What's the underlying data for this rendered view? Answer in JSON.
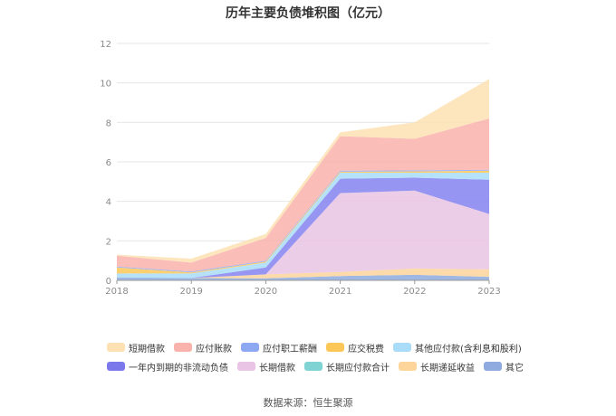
{
  "chart_data": {
    "type": "area",
    "stacked": true,
    "title": "历年主要负债堆积图（亿元）",
    "xlabel": "",
    "ylabel": "",
    "categories": [
      "2018",
      "2019",
      "2020",
      "2021",
      "2022",
      "2023"
    ],
    "ylim": [
      0,
      12
    ],
    "yticks": [
      0,
      2,
      4,
      6,
      8,
      10,
      12
    ],
    "grid": true,
    "legend_position": "bottom",
    "series": [
      {
        "name": "其它",
        "color": "#8eaade",
        "values": [
          0.15,
          0.12,
          0.1,
          0.22,
          0.28,
          0.18
        ]
      },
      {
        "name": "长期递延收益",
        "color": "#fdd49a",
        "values": [
          0.0,
          0.0,
          0.2,
          0.2,
          0.32,
          0.38
        ]
      },
      {
        "name": "长期应付款合计",
        "color": "#7fd3d3",
        "values": [
          0.0,
          0.0,
          0.0,
          0.0,
          0.0,
          0.0
        ]
      },
      {
        "name": "长期借款",
        "color": "#e9c4e4",
        "values": [
          0.0,
          0.0,
          0.0,
          4.0,
          3.95,
          2.8
        ]
      },
      {
        "name": "一年内到期的非流动负债",
        "color": "#8583f0",
        "values": [
          0.0,
          0.0,
          0.35,
          0.73,
          0.65,
          1.74
        ]
      },
      {
        "name": "其他应付款(含利息和股利)",
        "color": "#a8dcf8",
        "values": [
          0.2,
          0.23,
          0.25,
          0.3,
          0.25,
          0.35
        ]
      },
      {
        "name": "应交税费",
        "color": "#fbc857",
        "values": [
          0.3,
          0.05,
          0.05,
          0.05,
          0.07,
          0.1
        ]
      },
      {
        "name": "应付职工薪酬",
        "color": "#8fa8f4",
        "values": [
          0.05,
          0.05,
          0.05,
          0.05,
          0.05,
          0.05
        ]
      },
      {
        "name": "应付账款",
        "color": "#f9b2ac",
        "values": [
          0.55,
          0.45,
          1.15,
          1.75,
          1.6,
          2.6
        ]
      },
      {
        "name": "短期借款",
        "color": "#fde1b3",
        "values": [
          0.05,
          0.2,
          0.2,
          0.2,
          0.83,
          2.0
        ]
      }
    ]
  },
  "legend": {
    "rows": [
      [
        {
          "label": "短期借款",
          "color": "#fde1b3"
        },
        {
          "label": "应付账款",
          "color": "#f9b2ac"
        },
        {
          "label": "应付职工薪酬",
          "color": "#8fa8f4"
        },
        {
          "label": "应交税费",
          "color": "#fbc857"
        },
        {
          "label": "其他应付款(含利息和股利)",
          "color": "#a8dcf8"
        }
      ],
      [
        {
          "label": "一年内到期的非流动负债",
          "color": "#7b78ec"
        },
        {
          "label": "长期借款",
          "color": "#e9c4e4"
        },
        {
          "label": "长期应付款合计",
          "color": "#7fd3d3"
        },
        {
          "label": "长期递延收益",
          "color": "#fdd49a"
        },
        {
          "label": "其它",
          "color": "#8eaade"
        }
      ]
    ]
  },
  "source_text": "数据来源：恒生聚源"
}
